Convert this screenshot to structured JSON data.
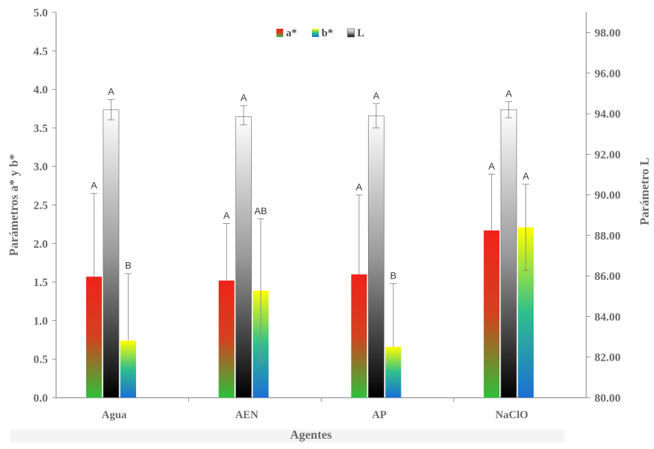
{
  "chart_data": {
    "type": "bar",
    "categories": [
      "Agua",
      "AEN",
      "AP",
      "NaClO"
    ],
    "xlabel": "Agentes",
    "ylabel": "Parámetros a* y b*",
    "y2label": "Parámetro L",
    "ylim": [
      0,
      5
    ],
    "y2lim": [
      80,
      99
    ],
    "yticks": [
      "0.0",
      "0.5",
      "1.0",
      "1.5",
      "2.0",
      "2.5",
      "3.0",
      "3.5",
      "4.0",
      "4.5",
      "5.0"
    ],
    "y2ticks": [
      "80.00",
      "82.00",
      "84.00",
      "86.00",
      "88.00",
      "90.00",
      "92.00",
      "94.00",
      "96.00",
      "98.00"
    ],
    "legend_position": "top-center",
    "series": [
      {
        "name": "a*",
        "axis": "left",
        "values": [
          1.57,
          1.52,
          1.6,
          2.17
        ],
        "err_high": [
          2.65,
          2.26,
          2.63,
          2.9
        ],
        "err_low": [
          1.57,
          1.52,
          1.6,
          2.17
        ],
        "labels": [
          "A",
          "A",
          "A",
          "A"
        ],
        "colors": [
          "#2fbf3b",
          "#d2421f",
          "#f0221b"
        ]
      },
      {
        "name": "L",
        "axis": "right",
        "values": [
          94.2,
          93.85,
          93.9,
          94.2
        ],
        "err_high": [
          94.7,
          94.4,
          94.5,
          94.6
        ],
        "err_low": [
          93.7,
          93.45,
          93.3,
          93.8
        ],
        "labels": [
          "A",
          "A",
          "A",
          "A"
        ],
        "colors": [
          "#000000",
          "#9a9a9a",
          "#ffffff"
        ]
      },
      {
        "name": "b*",
        "axis": "left",
        "values": [
          0.74,
          1.39,
          0.66,
          2.21
        ],
        "err_high": [
          1.61,
          2.32,
          1.48,
          2.77
        ],
        "err_low": [
          0.74,
          0.46,
          0.66,
          1.65
        ],
        "labels": [
          "B",
          "AB",
          "B",
          "A"
        ],
        "colors": [
          "#1b6fd6",
          "#2fbf8c",
          "#ffff00"
        ]
      }
    ]
  }
}
